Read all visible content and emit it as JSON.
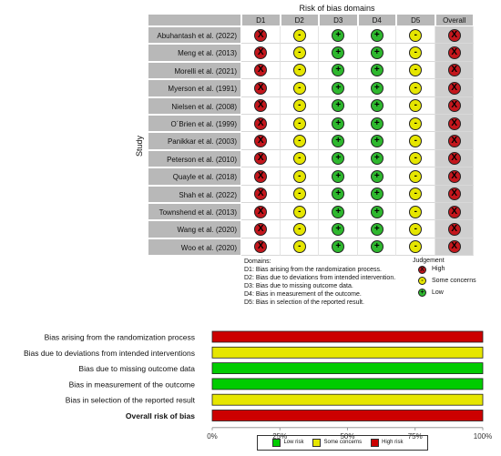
{
  "top": {
    "title": "Risk of bias domains",
    "y_title": "Study",
    "domains": [
      "D1",
      "D2",
      "D3",
      "D4",
      "D5",
      "Overall"
    ],
    "studies": [
      {
        "name": "Abuhantash et al. (2022)",
        "ratings": [
          "high",
          "some",
          "low",
          "low",
          "some",
          "high"
        ]
      },
      {
        "name": "Meng et al. (2013)",
        "ratings": [
          "high",
          "some",
          "low",
          "low",
          "some",
          "high"
        ]
      },
      {
        "name": "Morelli et al. (2021)",
        "ratings": [
          "high",
          "some",
          "low",
          "low",
          "some",
          "high"
        ]
      },
      {
        "name": "Myerson et al. (1991)",
        "ratings": [
          "high",
          "some",
          "low",
          "low",
          "some",
          "high"
        ]
      },
      {
        "name": "Nielsen et al. (2008)",
        "ratings": [
          "high",
          "some",
          "low",
          "low",
          "some",
          "high"
        ]
      },
      {
        "name": "O´Brien et al. (1999)",
        "ratings": [
          "high",
          "some",
          "low",
          "low",
          "some",
          "high"
        ]
      },
      {
        "name": "Panikkar et al. (2003)",
        "ratings": [
          "high",
          "some",
          "low",
          "low",
          "some",
          "high"
        ]
      },
      {
        "name": "Peterson et al. (2010)",
        "ratings": [
          "high",
          "some",
          "low",
          "low",
          "some",
          "high"
        ]
      },
      {
        "name": "Quayle et al. (2018)",
        "ratings": [
          "high",
          "some",
          "low",
          "low",
          "some",
          "high"
        ]
      },
      {
        "name": "Shah et al. (2022)",
        "ratings": [
          "high",
          "some",
          "low",
          "low",
          "some",
          "high"
        ]
      },
      {
        "name": "Townshend et al. (2013)",
        "ratings": [
          "high",
          "some",
          "low",
          "low",
          "some",
          "high"
        ]
      },
      {
        "name": "Wang et al. (2020)",
        "ratings": [
          "high",
          "some",
          "low",
          "low",
          "some",
          "high"
        ]
      },
      {
        "name": "Woo et al. (2020)",
        "ratings": [
          "high",
          "some",
          "low",
          "low",
          "some",
          "high"
        ]
      }
    ],
    "symbols": {
      "high": "X",
      "some": "-",
      "low": "+"
    },
    "colors": {
      "high": "#c4161c",
      "some": "#e6e600",
      "low": "#2eb82e"
    },
    "domains_note": {
      "title": "Domains:",
      "lines": [
        "D1: Bias arising from the randomization process.",
        "D2: Bias due to deviations from intended intervention.",
        "D3: Bias due to missing outcome data.",
        "D4: Bias in measurement of the outcome.",
        "D5: Bias in selection of the reported result."
      ]
    },
    "judgement": {
      "title": "Judgement",
      "items": [
        {
          "key": "high",
          "label": "High"
        },
        {
          "key": "some",
          "label": "Some concerns"
        },
        {
          "key": "low",
          "label": "Low"
        }
      ]
    }
  },
  "chart_data": {
    "type": "bar",
    "orientation": "horizontal",
    "stacked": true,
    "categories": [
      "Bias arising from the randomization process",
      "Bias due to deviations from intended interventions",
      "Bias due to missing outcome data",
      "Bias in measurement of the outcome",
      "Bias in selection of the reported result",
      "Overall risk of bias"
    ],
    "series": [
      {
        "name": "Low risk",
        "color": "#00cc00",
        "values": [
          0,
          0,
          100,
          100,
          0,
          0
        ]
      },
      {
        "name": "Some concerns",
        "color": "#e6e600",
        "values": [
          0,
          100,
          0,
          0,
          100,
          0
        ]
      },
      {
        "name": "High risk",
        "color": "#cc0000",
        "values": [
          100,
          0,
          0,
          0,
          0,
          100
        ]
      }
    ],
    "xlim": [
      0,
      100
    ],
    "xticks": [
      "0%",
      "25%",
      "50%",
      "75%",
      "100%"
    ],
    "legend_position": "bottom"
  }
}
